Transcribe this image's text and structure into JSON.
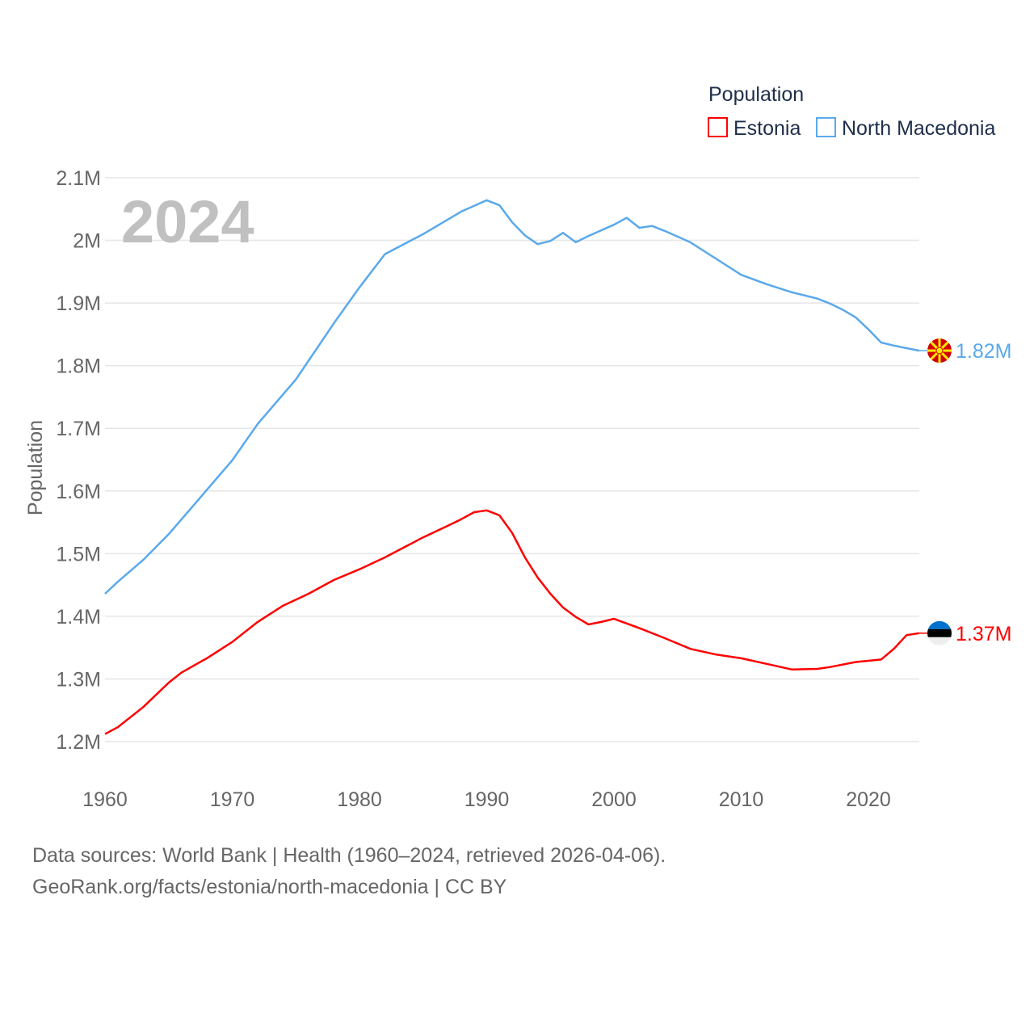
{
  "chart_data": {
    "type": "line",
    "title": "",
    "watermark_year": "2024",
    "xlabel": "",
    "ylabel": "Population",
    "xlim": [
      1960,
      2024
    ],
    "ylim": [
      1200000,
      2100000
    ],
    "x_ticks": [
      1960,
      1970,
      1980,
      1990,
      2000,
      2010,
      2020
    ],
    "x_tick_labels": [
      "1960",
      "1970",
      "1980",
      "1990",
      "2000",
      "2010",
      "2020"
    ],
    "y_ticks": [
      1200000,
      1300000,
      1400000,
      1500000,
      1600000,
      1700000,
      1800000,
      1900000,
      2000000,
      2100000
    ],
    "y_tick_labels": [
      "1.2M",
      "1.3M",
      "1.4M",
      "1.5M",
      "1.6M",
      "1.7M",
      "1.8M",
      "1.9M",
      "2M",
      "2.1M"
    ],
    "grid": true,
    "legend": {
      "title": "Population",
      "placement": "top-right"
    },
    "series": [
      {
        "name": "Estonia",
        "color": "#ff0000",
        "end_label": "1.37M",
        "x": [
          1960,
          1961,
          1963,
          1965,
          1966,
          1968,
          1970,
          1972,
          1974,
          1976,
          1978,
          1980,
          1982,
          1985,
          1987,
          1988,
          1989,
          1990,
          1991,
          1992,
          1993,
          1994,
          1995,
          1996,
          1997,
          1998,
          1999,
          2000,
          2002,
          2004,
          2006,
          2008,
          2010,
          2012,
          2014,
          2016,
          2017,
          2019,
          2020,
          2021,
          2022,
          2023,
          2024
        ],
        "y": [
          1212000,
          1223000,
          1255000,
          1294000,
          1310000,
          1333000,
          1359000,
          1391000,
          1417000,
          1436000,
          1458000,
          1475000,
          1494000,
          1526000,
          1545000,
          1555000,
          1566000,
          1569000,
          1561000,
          1533000,
          1494000,
          1462000,
          1436000,
          1414000,
          1399000,
          1387000,
          1391000,
          1396000,
          1381000,
          1365000,
          1348000,
          1339000,
          1333000,
          1324000,
          1315000,
          1316000,
          1319000,
          1327000,
          1329000,
          1331000,
          1348000,
          1370000,
          1373000
        ]
      },
      {
        "name": "North Macedonia",
        "color": "#5aa9ec",
        "end_label": "1.82M",
        "x": [
          1960,
          1961,
          1963,
          1965,
          1967,
          1970,
          1972,
          1975,
          1978,
          1980,
          1982,
          1985,
          1988,
          1990,
          1991,
          1992,
          1993,
          1994,
          1995,
          1996,
          1997,
          1998,
          2000,
          2001,
          2002,
          2003,
          2004,
          2006,
          2008,
          2010,
          2012,
          2014,
          2016,
          2017,
          2018,
          2019,
          2020,
          2021,
          2022,
          2023,
          2024
        ],
        "y": [
          1436000,
          1455000,
          1490000,
          1531000,
          1578000,
          1649000,
          1707000,
          1778000,
          1868000,
          1925000,
          1978000,
          2010000,
          2046000,
          2064000,
          2056000,
          2029000,
          2008000,
          1994000,
          1999000,
          2012000,
          1997000,
          2007000,
          2025000,
          2036000,
          2020000,
          2023000,
          2015000,
          1997000,
          1971000,
          1945000,
          1930000,
          1917000,
          1907000,
          1899000,
          1889000,
          1877000,
          1858000,
          1837000,
          1832000,
          1828000,
          1824000
        ]
      }
    ]
  },
  "footer": {
    "line1": "Data sources: World Bank | Health (1960–2024, retrieved 2026-04-06).",
    "line2": "GeoRank.org/facts/estonia/north-macedonia | CC BY"
  }
}
